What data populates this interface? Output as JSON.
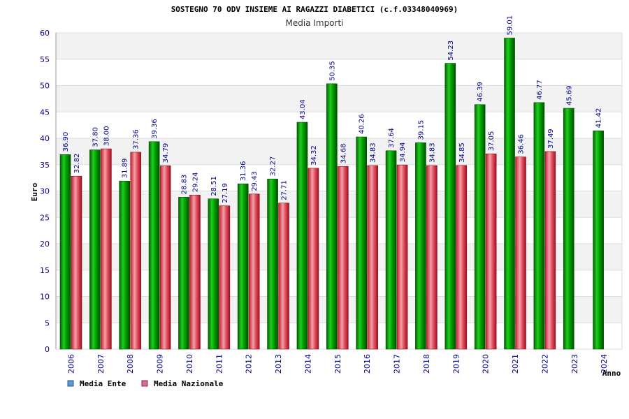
{
  "chart_data": {
    "type": "bar",
    "title": "SOSTEGNO 70 ODV INSIEME AI RAGAZZI DIABETICI (c.f.03348040969)",
    "subtitle": "Media Importi",
    "xlabel": "Anno",
    "ylabel": "Euro",
    "ylim": [
      0,
      60
    ],
    "yticks": [
      0,
      5,
      10,
      15,
      20,
      25,
      30,
      35,
      40,
      45,
      50,
      55,
      60
    ],
    "categories": [
      "2006",
      "2007",
      "2008",
      "2009",
      "2010",
      "2011",
      "2012",
      "2013",
      "2014",
      "2015",
      "2016",
      "2017",
      "2018",
      "2019",
      "2020",
      "2021",
      "2022",
      "2023",
      "2024"
    ],
    "series": [
      {
        "name": "Media Ente",
        "color": "#00a000",
        "values": [
          36.9,
          37.8,
          31.89,
          39.36,
          28.83,
          28.51,
          31.36,
          32.27,
          43.04,
          50.35,
          40.26,
          37.64,
          39.15,
          54.23,
          46.39,
          59.01,
          46.77,
          45.69,
          41.42
        ],
        "labels": [
          "36.90",
          "37.80",
          "31.89",
          "39.36",
          "28.83",
          "28.51",
          "31.36",
          "32.27",
          "43.04",
          "50.35",
          "40.26",
          "37.64",
          "39.15",
          "54.23",
          "46.39",
          "59.01",
          "46.77",
          "45.69",
          "41.42"
        ]
      },
      {
        "name": "Media Nazionale",
        "color": "#e05060",
        "values": [
          32.82,
          38.0,
          37.36,
          34.79,
          29.24,
          27.19,
          29.43,
          27.71,
          34.32,
          34.68,
          34.83,
          34.94,
          34.83,
          34.85,
          37.05,
          36.46,
          37.49,
          null,
          null
        ],
        "labels": [
          "32.82",
          "38.00",
          "37.36",
          "34.79",
          "29.24",
          "27.19",
          "29.43",
          "27.71",
          "34.32",
          "34.68",
          "34.83",
          "34.94",
          "34.83",
          "34.85",
          "37.05",
          "36.46",
          "37.49",
          null,
          null
        ]
      }
    ],
    "legend": {
      "position": "bottom-left",
      "items": [
        {
          "label": "Media Ente",
          "color": "#5599dd"
        },
        {
          "label": "Media Nazionale",
          "color": "#dd6699"
        }
      ]
    },
    "grid": true,
    "colors": {
      "band_light": "#ffffff",
      "band_dark": "#f2f2f2",
      "gridline": "#dddddd",
      "axis": "#999999"
    }
  }
}
